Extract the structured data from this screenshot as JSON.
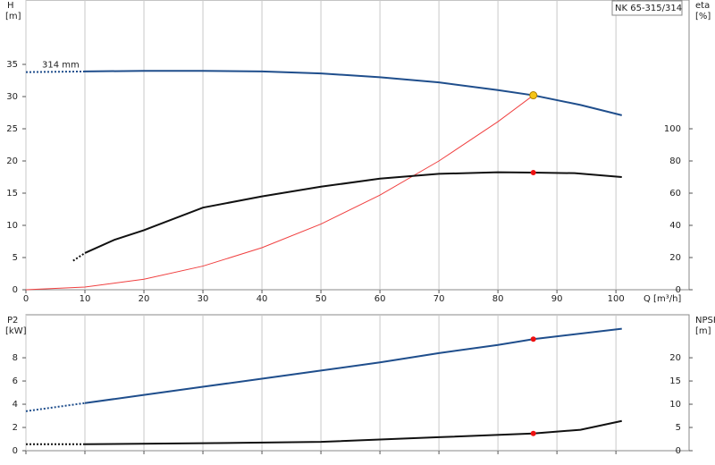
{
  "chart_data": [
    {
      "type": "line",
      "title": "NK 65-315/314",
      "xlabel": "Q [m³/h]",
      "ylabel": "H",
      "yunit": "[m]",
      "y2label": "eta",
      "y2unit": "[%]",
      "xlim": [
        0,
        112.4
      ],
      "xticks": [
        0,
        10,
        20,
        30,
        40,
        50,
        60,
        70,
        80,
        90,
        100
      ],
      "xtick_labels": true,
      "ylim": [
        0,
        45
      ],
      "yticks": [
        0,
        5,
        10,
        15,
        20,
        25,
        30,
        35
      ],
      "y2lim": [
        0,
        180
      ],
      "y2ticks": [
        0,
        20,
        40,
        60,
        80,
        100
      ],
      "grid": "x",
      "annotation": {
        "text": "314 mm",
        "x": 0,
        "y": 33.8
      },
      "series": [
        {
          "color": "#1f4e8c",
          "width": 2,
          "dashed": true,
          "x": [
            0,
            10
          ],
          "values": [
            33.8,
            33.9
          ]
        },
        {
          "color": "#1f4e8c",
          "width": 2,
          "dashed": false,
          "x": [
            10,
            20,
            30,
            40,
            50,
            60,
            70,
            80,
            86,
            94,
            101
          ],
          "values": [
            33.9,
            34.0,
            34.0,
            33.9,
            33.6,
            33.0,
            32.2,
            31.0,
            30.2,
            28.7,
            27.1
          ]
        },
        {
          "color": "#f04040",
          "width": 1,
          "dashed": false,
          "x": [
            0,
            10,
            20,
            30,
            40,
            50,
            60,
            70,
            80,
            86
          ],
          "values": [
            0,
            0.41,
            1.63,
            3.67,
            6.53,
            10.2,
            14.7,
            20.0,
            26.1,
            30.2
          ]
        },
        {
          "color": "#111111",
          "width": 2,
          "dashed": true,
          "axis": "y2",
          "x": [
            8,
            10
          ],
          "values": [
            18,
            22.8
          ]
        },
        {
          "color": "#111111",
          "width": 2,
          "dashed": false,
          "axis": "y2",
          "x": [
            10,
            15,
            20,
            30,
            40,
            50,
            60,
            70,
            80,
            86,
            93,
            101
          ],
          "values": [
            22.8,
            31,
            37,
            51,
            58,
            64,
            69,
            72,
            73,
            72.8,
            72.4,
            70
          ]
        }
      ],
      "points": [
        {
          "x": 86,
          "y": 30.2,
          "color": "#f5c518"
        },
        {
          "x": 86,
          "y": 72.8,
          "axis": "y2",
          "color": "#ee1111"
        }
      ]
    },
    {
      "type": "line",
      "ylabel": "P2",
      "yunit": "[kW]",
      "y2label": "NPSH",
      "y2unit": "[m]",
      "xlim": [
        0,
        112.4
      ],
      "xticks": [
        0,
        10,
        20,
        30,
        40,
        50,
        60,
        70,
        80,
        90,
        100
      ],
      "xtick_labels": false,
      "ylim": [
        0,
        11.7
      ],
      "yticks": [
        0,
        2,
        4,
        6,
        8
      ],
      "y2lim": [
        0,
        29.25
      ],
      "y2ticks": [
        0,
        5,
        10,
        15,
        20
      ],
      "grid": "x",
      "series": [
        {
          "color": "#1f4e8c",
          "width": 2,
          "dashed": true,
          "x": [
            0,
            10
          ],
          "values": [
            3.4,
            4.1
          ]
        },
        {
          "color": "#1f4e8c",
          "width": 2,
          "dashed": false,
          "x": [
            10,
            20,
            30,
            40,
            50,
            60,
            70,
            80,
            86,
            101
          ],
          "values": [
            4.1,
            4.8,
            5.5,
            6.2,
            6.9,
            7.6,
            8.4,
            9.1,
            9.6,
            10.5
          ]
        },
        {
          "color": "#111111",
          "width": 2,
          "dashed": true,
          "axis": "y2",
          "x": [
            0,
            10
          ],
          "values": [
            1.4,
            1.4
          ]
        },
        {
          "color": "#111111",
          "width": 2,
          "dashed": false,
          "axis": "y2",
          "x": [
            10,
            30,
            50,
            70,
            86,
            94,
            101
          ],
          "values": [
            1.4,
            1.6,
            1.9,
            2.9,
            3.7,
            4.5,
            6.4
          ]
        }
      ],
      "points": [
        {
          "x": 86,
          "y": 9.6,
          "color": "#ee1111"
        },
        {
          "x": 86,
          "y": 3.7,
          "axis": "y2",
          "color": "#ee1111"
        }
      ]
    }
  ]
}
